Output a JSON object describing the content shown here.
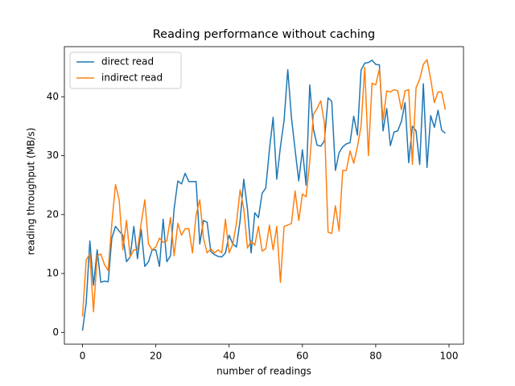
{
  "chart_data": {
    "type": "line",
    "title": "Reading performance without caching",
    "x_label": "number of readings",
    "y_label": "reading throughput (MB/s)",
    "x": [
      0,
      1,
      2,
      3,
      4,
      5,
      6,
      7,
      8,
      9,
      10,
      11,
      12,
      13,
      14,
      15,
      16,
      17,
      18,
      19,
      20,
      21,
      22,
      23,
      24,
      25,
      26,
      27,
      28,
      29,
      30,
      31,
      32,
      33,
      34,
      35,
      36,
      37,
      38,
      39,
      40,
      41,
      42,
      43,
      44,
      45,
      46,
      47,
      48,
      49,
      50,
      51,
      52,
      53,
      54,
      55,
      56,
      57,
      58,
      59,
      60,
      61,
      62,
      63,
      64,
      65,
      66,
      67,
      68,
      69,
      70,
      71,
      72,
      73,
      74,
      75,
      76,
      77,
      78,
      79,
      80,
      81,
      82,
      83,
      84,
      85,
      86,
      87,
      88,
      89,
      90,
      91,
      92,
      93,
      94,
      95,
      96,
      97,
      98,
      99
    ],
    "series": [
      {
        "name": "direct read",
        "color": "#1f77b4",
        "values": [
          0.3,
          5,
          15.5,
          8,
          14,
          8.5,
          8.7,
          8.6,
          16,
          18,
          17.2,
          16.5,
          12,
          12.8,
          18,
          12.5,
          17.5,
          11.2,
          12,
          14,
          14,
          11.2,
          19.2,
          12,
          13,
          21,
          25.7,
          25.2,
          27,
          25.6,
          25.6,
          25.6,
          15,
          19,
          18.7,
          13.7,
          13.2,
          12.9,
          12.8,
          13.5,
          16.5,
          15,
          14.5,
          19,
          26,
          21,
          13.5,
          20.3,
          19.5,
          23.6,
          24.5,
          31,
          36.5,
          26,
          31.5,
          36,
          44.6,
          36.5,
          31,
          25.7,
          31,
          25,
          42,
          34.5,
          31.8,
          31.6,
          32.5,
          39.8,
          39.2,
          27.5,
          30.5,
          31.5,
          32,
          32.2,
          36.7,
          33.5,
          44.5,
          45.7,
          45.8,
          46.2,
          45.5,
          45.4,
          34.2,
          38,
          31.7,
          34,
          34.2,
          35.8,
          39,
          28.8,
          35,
          34.2,
          28.5,
          42.2,
          28,
          36.8,
          34.8,
          37.7,
          34.3,
          33.8
        ]
      },
      {
        "name": "indirect read",
        "color": "#ff7f0e",
        "values": [
          2.7,
          12.3,
          13.3,
          3.5,
          13,
          13.3,
          11.5,
          10.5,
          18.5,
          25.1,
          22.5,
          14,
          19,
          12.8,
          14,
          14,
          18.5,
          22.5,
          15,
          14,
          14.5,
          16,
          15.3,
          15.5,
          19.5,
          13,
          18.5,
          16.5,
          17.6,
          17.6,
          13.5,
          20,
          22.5,
          16,
          13.5,
          14.2,
          13.5,
          14,
          13.5,
          19.2,
          13.5,
          15,
          18.5,
          24.2,
          21,
          14.3,
          15.5,
          14.8,
          18,
          13.8,
          14.2,
          18.2,
          14,
          18,
          8.5,
          18,
          18.2,
          18.5,
          24,
          19,
          23.5,
          23,
          29,
          37,
          38,
          39.3,
          35.5,
          17,
          16.8,
          21.5,
          17.2,
          27.5,
          27.5,
          30.8,
          28.7,
          31.5,
          35,
          45,
          30,
          42.3,
          42,
          44.7,
          36,
          41,
          40.8,
          41.2,
          41,
          37.8,
          41,
          41.2,
          28.5,
          41.5,
          43,
          45.5,
          46.3,
          43,
          39,
          40.8,
          40.8,
          37.8
        ]
      }
    ],
    "xlim": [
      -4.95,
      103.95
    ],
    "ylim": [
      -2.0,
      48.5
    ],
    "xticks": [
      0,
      20,
      40,
      60,
      80,
      100
    ],
    "yticks": [
      0,
      10,
      20,
      30,
      40
    ],
    "legend": "upper left"
  }
}
